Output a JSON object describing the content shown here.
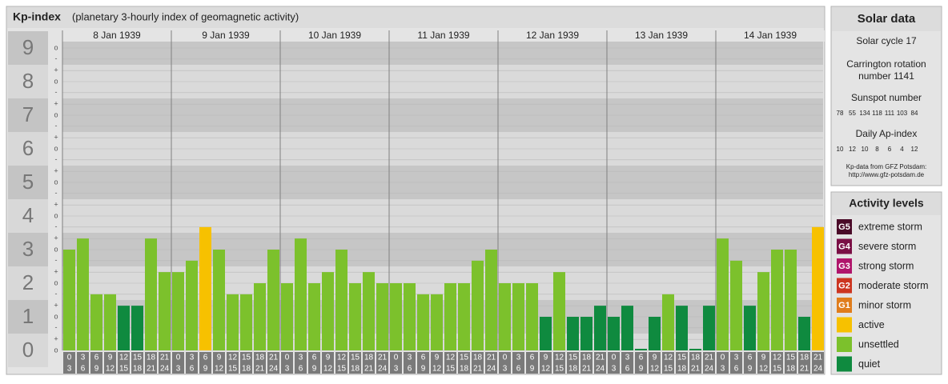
{
  "title": "Kp-index",
  "subtitle": "(planetary 3-hourly index of geomagnetic activity)",
  "chart_data": {
    "type": "bar",
    "days": [
      "8 Jan 1939",
      "9 Jan 1939",
      "10 Jan 1939",
      "11 Jan 1939",
      "12 Jan 1939",
      "13 Jan 1939",
      "14 Jan 1939"
    ],
    "hours": [
      [
        "0",
        "3"
      ],
      [
        "3",
        "6"
      ],
      [
        "6",
        "9"
      ],
      [
        "9",
        "12"
      ],
      [
        "12",
        "15"
      ],
      [
        "15",
        "18"
      ],
      [
        "18",
        "21"
      ],
      [
        "21",
        "24"
      ]
    ],
    "ylim": [
      -0.5,
      9.5
    ],
    "yticks": [
      0,
      1,
      2,
      3,
      4,
      5,
      6,
      7,
      8,
      9
    ],
    "subticks": [
      {
        "value": 0,
        "label": "o"
      },
      {
        "value": 0.33,
        "label": "+"
      },
      {
        "value": 0.67,
        "label": "-"
      },
      {
        "value": 1,
        "label": "o"
      },
      {
        "value": 1.33,
        "label": "+"
      },
      {
        "value": 1.67,
        "label": "-"
      },
      {
        "value": 2,
        "label": "o"
      },
      {
        "value": 2.33,
        "label": "+"
      },
      {
        "value": 2.67,
        "label": "-"
      },
      {
        "value": 3,
        "label": "o"
      },
      {
        "value": 3.33,
        "label": "+"
      },
      {
        "value": 3.67,
        "label": "-"
      },
      {
        "value": 4,
        "label": "o"
      },
      {
        "value": 4.33,
        "label": "+"
      },
      {
        "value": 4.67,
        "label": "-"
      },
      {
        "value": 5,
        "label": "o"
      },
      {
        "value": 5.33,
        "label": "+"
      },
      {
        "value": 5.67,
        "label": "-"
      },
      {
        "value": 6,
        "label": "o"
      },
      {
        "value": 6.33,
        "label": "+"
      },
      {
        "value": 6.67,
        "label": "-"
      },
      {
        "value": 7,
        "label": "o"
      },
      {
        "value": 7.33,
        "label": "+"
      },
      {
        "value": 7.67,
        "label": "-"
      },
      {
        "value": 8,
        "label": "o"
      },
      {
        "value": 8.33,
        "label": "+"
      },
      {
        "value": 8.67,
        "label": "-"
      },
      {
        "value": 9,
        "label": "o"
      }
    ],
    "values": [
      3,
      3.33,
      1.67,
      1.67,
      1.33,
      1.33,
      3.33,
      2.33,
      2.33,
      2.67,
      3.67,
      3,
      1.67,
      1.67,
      2,
      3,
      2,
      3.33,
      2,
      2.33,
      3,
      2,
      2.33,
      2,
      2,
      2,
      1.67,
      1.67,
      2,
      2,
      2.67,
      3,
      2,
      2,
      2,
      1,
      2.33,
      1,
      1,
      1.33,
      1,
      1.33,
      0,
      1,
      1.67,
      1.33,
      0,
      1.33,
      3.33,
      2.67,
      1.33,
      2.33,
      3,
      3,
      1,
      3.67
    ],
    "colors": [
      "#7cc12c",
      "#7cc12c",
      "#7cc12c",
      "#7cc12c",
      "#0f8a3f",
      "#0f8a3f",
      "#7cc12c",
      "#7cc12c",
      "#7cc12c",
      "#7cc12c",
      "#f7c100",
      "#7cc12c",
      "#7cc12c",
      "#7cc12c",
      "#7cc12c",
      "#7cc12c",
      "#7cc12c",
      "#7cc12c",
      "#7cc12c",
      "#7cc12c",
      "#7cc12c",
      "#7cc12c",
      "#7cc12c",
      "#7cc12c",
      "#7cc12c",
      "#7cc12c",
      "#7cc12c",
      "#7cc12c",
      "#7cc12c",
      "#7cc12c",
      "#7cc12c",
      "#7cc12c",
      "#7cc12c",
      "#7cc12c",
      "#7cc12c",
      "#0f8a3f",
      "#7cc12c",
      "#0f8a3f",
      "#0f8a3f",
      "#0f8a3f",
      "#0f8a3f",
      "#0f8a3f",
      "#0f8a3f",
      "#0f8a3f",
      "#7cc12c",
      "#0f8a3f",
      "#0f8a3f",
      "#0f8a3f",
      "#7cc12c",
      "#7cc12c",
      "#0f8a3f",
      "#7cc12c",
      "#7cc12c",
      "#7cc12c",
      "#0f8a3f",
      "#f7c100"
    ]
  },
  "solar_data": {
    "title": "Solar data",
    "cycle": "Solar cycle 17",
    "carrington": [
      "Carrington rotation",
      "number 1141"
    ],
    "sunspot_title": "Sunspot number",
    "sunspot": [
      78,
      55,
      134,
      118,
      111,
      103,
      84
    ],
    "ap_title": "Daily Ap-index",
    "ap": [
      10,
      12,
      10,
      8,
      6,
      4,
      12
    ],
    "source": "Kp-data from GFZ Potsdam:",
    "url": "http://www.gfz-potsdam.de"
  },
  "activity_levels": {
    "title": "Activity levels",
    "items": [
      {
        "badge": "G5",
        "label": "extreme storm",
        "color": "#4a0a28"
      },
      {
        "badge": "G4",
        "label": "severe storm",
        "color": "#7a0f45"
      },
      {
        "badge": "G3",
        "label": "strong storm",
        "color": "#b0156b"
      },
      {
        "badge": "G2",
        "label": "moderate storm",
        "color": "#cc3520"
      },
      {
        "badge": "G1",
        "label": "minor storm",
        "color": "#e07d1c"
      },
      {
        "label": "active",
        "color": "#f7c100"
      },
      {
        "label": "unsettled",
        "color": "#7cc12c"
      },
      {
        "label": "quiet",
        "color": "#0f8a3f"
      }
    ]
  }
}
